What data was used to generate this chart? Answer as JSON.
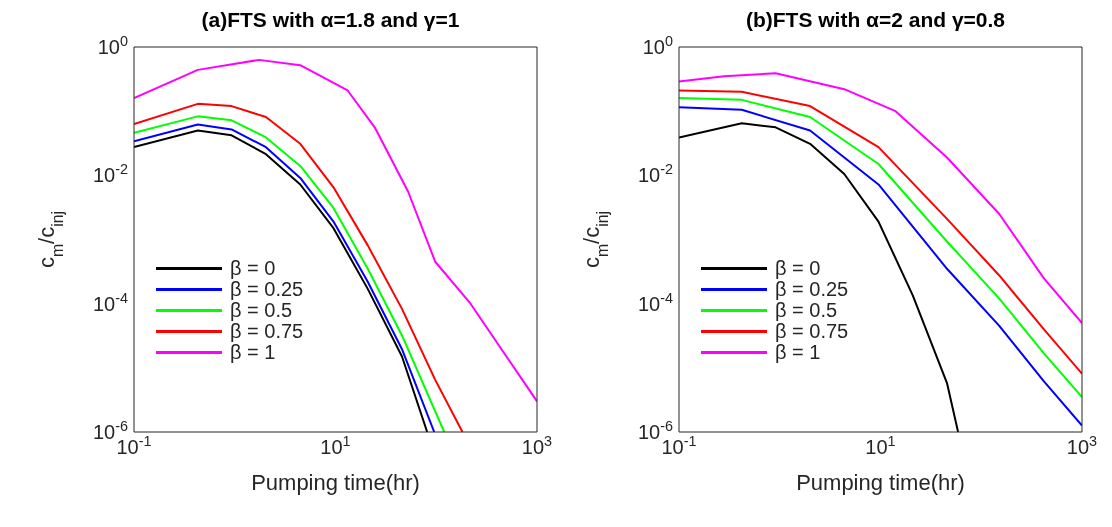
{
  "chart_data": [
    {
      "type": "line",
      "title": "(a)FTS with α=1.8 and γ=1",
      "xlabel": "Pumping time(hr)",
      "ylabel": "c$_{m}$/c$_{inj}$",
      "log": "xy",
      "grid": false,
      "legend": "bottom left",
      "marker": "none",
      "line_style": "solid",
      "xlim": [
        0.1,
        1000
      ],
      "ylim": [
        1e-06,
        1
      ],
      "xticks": [
        {
          "value": 0.1,
          "label": "10$^{-1}$"
        },
        {
          "value": 10,
          "label": "10$^{1}$"
        },
        {
          "value": 1000,
          "label": "10$^{3}$"
        }
      ],
      "yticks": [
        {
          "value": 1e-06,
          "label": "10$^{-6}$"
        },
        {
          "value": 0.0001,
          "label": "10$^{-4}$"
        },
        {
          "value": 0.01,
          "label": "10$^{-2}$"
        },
        {
          "value": 1,
          "label": "10$^{0}$"
        }
      ],
      "series": [
        {
          "name": "β = 0",
          "color": "#000000",
          "x": [
            0.1,
            0.43,
            0.93,
            2.04,
            4.47,
            9.55,
            20.9,
            45.7,
            81.3
          ],
          "values": [
            0.0275,
            0.05,
            0.042,
            0.0214,
            0.0072,
            0.0015,
            0.00017,
            1.5e-05,
            1e-06
          ]
        },
        {
          "name": "β = 0.25",
          "color": "#0000ff",
          "x": [
            0.1,
            0.43,
            0.93,
            2.04,
            4.47,
            9.55,
            20.9,
            45.7,
            95.5
          ],
          "values": [
            0.034,
            0.062,
            0.052,
            0.0275,
            0.0091,
            0.0019,
            0.00022,
            1.95e-05,
            1e-06
          ]
        },
        {
          "name": "β = 0.5",
          "color": "#00ff00",
          "x": [
            0.1,
            0.43,
            0.93,
            2.04,
            4.47,
            9.55,
            20.9,
            45.7,
            120
          ],
          "values": [
            0.046,
            0.083,
            0.072,
            0.039,
            0.014,
            0.0031,
            0.00035,
            3.2e-05,
            1e-06
          ]
        },
        {
          "name": "β = 0.75",
          "color": "#ff0000",
          "x": [
            0.1,
            0.43,
            0.93,
            2.04,
            4.47,
            9.55,
            20.9,
            45.7,
            97.7,
            182
          ],
          "values": [
            0.063,
            0.13,
            0.12,
            0.081,
            0.031,
            0.0065,
            0.00081,
            8.3e-05,
            6.5e-06,
            1e-06
          ]
        },
        {
          "name": "β = 1",
          "color": "#ff00ff",
          "x": [
            0.1,
            0.43,
            1.74,
            4.47,
            13.2,
            24.5,
            52.5,
            97.7,
            214,
            1000
          ],
          "values": [
            0.16,
            0.44,
            0.63,
            0.52,
            0.21,
            0.056,
            0.0056,
            0.00045,
            0.000105,
            3e-06
          ]
        }
      ]
    },
    {
      "type": "line",
      "title": "(b)FTS with α=2 and γ=0.8",
      "xlabel": "Pumping time(hr)",
      "ylabel": "c$_{m}$/c$_{inj}$",
      "log": "xy",
      "grid": false,
      "legend": "bottom left",
      "marker": "none",
      "line_style": "solid",
      "xlim": [
        0.1,
        1000
      ],
      "ylim": [
        1e-06,
        1
      ],
      "xticks": [
        {
          "value": 0.1,
          "label": "10$^{-1}$"
        },
        {
          "value": 10,
          "label": "10$^{1}$"
        },
        {
          "value": 1000,
          "label": "10$^{3}$"
        }
      ],
      "yticks": [
        {
          "value": 1e-06,
          "label": "10$^{-6}$"
        },
        {
          "value": 0.0001,
          "label": "10$^{-4}$"
        },
        {
          "value": 0.01,
          "label": "10$^{-2}$"
        },
        {
          "value": 1,
          "label": "10$^{0}$"
        }
      ],
      "series": [
        {
          "name": "β = 0",
          "color": "#000000",
          "x": [
            0.1,
            0.42,
            0.91,
            2.0,
            4.37,
            9.55,
            20.9,
            45.7,
            58.9
          ],
          "values": [
            0.039,
            0.065,
            0.056,
            0.031,
            0.0105,
            0.0019,
            0.000135,
            5.8e-06,
            1e-06
          ]
        },
        {
          "name": "β = 0.25",
          "color": "#0000ff",
          "x": [
            0.1,
            0.42,
            2.0,
            9.55,
            45.7,
            151,
            417,
            1000
          ],
          "values": [
            0.115,
            0.105,
            0.05,
            0.0072,
            0.00035,
            4.5e-05,
            6.2e-06,
            1.26e-06
          ]
        },
        {
          "name": "β = 0.5",
          "color": "#00ff00",
          "x": [
            0.1,
            0.42,
            2.0,
            9.55,
            45.7,
            151,
            417,
            1000
          ],
          "values": [
            0.16,
            0.15,
            0.081,
            0.015,
            0.00093,
            0.00012,
            1.7e-05,
            3.5e-06
          ]
        },
        {
          "name": "β = 0.75",
          "color": "#ff0000",
          "x": [
            0.1,
            0.42,
            2.0,
            9.55,
            45.7,
            151,
            417,
            1000
          ],
          "values": [
            0.21,
            0.2,
            0.12,
            0.0275,
            0.0021,
            0.000275,
            4e-05,
            8.1e-06
          ]
        },
        {
          "name": "β = 1",
          "color": "#ff00ff",
          "x": [
            0.1,
            0.28,
            0.91,
            4.37,
            14.1,
            45.7,
            151,
            417,
            1000
          ],
          "values": [
            0.29,
            0.35,
            0.39,
            0.22,
            0.1,
            0.019,
            0.0025,
            0.00025,
            5e-05
          ]
        }
      ]
    }
  ]
}
